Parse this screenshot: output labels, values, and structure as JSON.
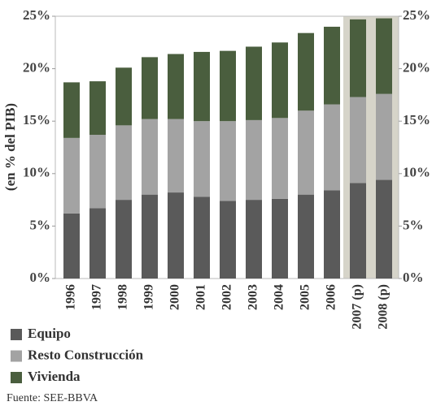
{
  "chart_data": {
    "type": "stacked_bar",
    "y_label": "(en % del PIB)",
    "source": "Fuente: SEE-BBVA",
    "categories": [
      "1996",
      "1997",
      "1998",
      "1999",
      "2000",
      "2001",
      "2002",
      "2003",
      "2004",
      "2005",
      "2006",
      "2007 (p)",
      "2008 (p)"
    ],
    "series": [
      {
        "name": "Equipo",
        "color": "#5a5a5a",
        "values": [
          6.2,
          6.7,
          7.5,
          8.0,
          8.2,
          7.8,
          7.4,
          7.5,
          7.6,
          8.0,
          8.4,
          9.1,
          9.4
        ]
      },
      {
        "name": "Resto Construcción",
        "color": "#a3a3a3",
        "values": [
          7.2,
          7.0,
          7.1,
          7.2,
          7.0,
          7.2,
          7.6,
          7.6,
          7.7,
          8.0,
          8.2,
          8.2,
          8.2
        ]
      },
      {
        "name": "Vivienda",
        "color": "#4a5e3e",
        "values": [
          5.3,
          5.1,
          5.5,
          5.9,
          6.2,
          6.6,
          6.7,
          7.0,
          7.2,
          7.4,
          7.4,
          7.4,
          7.2
        ]
      }
    ],
    "ylim": [
      0,
      25
    ],
    "yticks": [
      {
        "value": 0,
        "label": "0%"
      },
      {
        "value": 5,
        "label": "5%"
      },
      {
        "value": 10,
        "label": "10%"
      },
      {
        "value": 15,
        "label": "15%"
      },
      {
        "value": 20,
        "label": "20%"
      },
      {
        "value": 25,
        "label": "25%"
      }
    ],
    "y2lim": [
      0,
      25
    ],
    "y2ticks": [
      {
        "value": 0,
        "label": "0%"
      },
      {
        "value": 5,
        "label": "5%"
      },
      {
        "value": 10,
        "label": "10%"
      },
      {
        "value": 15,
        "label": "15%"
      },
      {
        "value": 20,
        "label": "20%"
      },
      {
        "value": 25,
        "label": "25%"
      }
    ],
    "highlight": {
      "from": 11,
      "to": 12,
      "color": "#d6d4c9"
    },
    "grid": false
  }
}
